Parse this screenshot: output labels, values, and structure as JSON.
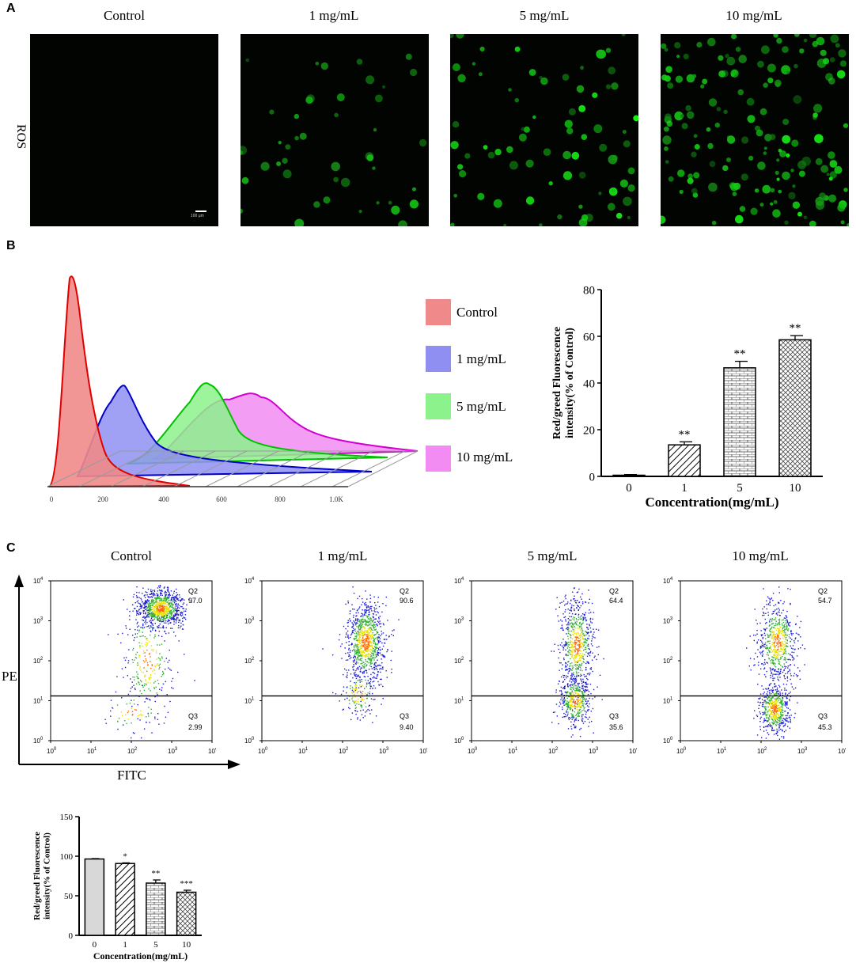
{
  "panels": {
    "a": "A",
    "b": "B",
    "c": "C"
  },
  "panel_a": {
    "row_label": "ROS",
    "columns": [
      "Control",
      "1 mg/mL",
      "5 mg/mL",
      "10 mg/mL"
    ],
    "scale_bar": "100 μm"
  },
  "panel_b": {
    "histogram": {
      "x_ticks": [
        "0",
        "200",
        "400",
        "600",
        "800",
        "1.0K"
      ],
      "legend": [
        {
          "label": "Control",
          "color": "#f08a8a"
        },
        {
          "label": "1 mg/mL",
          "color": "#8f8ff2"
        },
        {
          "label": "5 mg/mL",
          "color": "#8cf28c"
        },
        {
          "label": "10 mg/mL",
          "color": "#f28cf2"
        }
      ]
    }
  },
  "panel_c": {
    "columns": [
      "Control",
      "1 mg/mL",
      "5 mg/mL",
      "10 mg/mL"
    ],
    "y_axis_label": "PE",
    "x_axis_label": "FITC",
    "quadrants": [
      {
        "q2": "Q2",
        "q2_value": "97.0",
        "q3": "Q3",
        "q3_value": "2.99"
      },
      {
        "q2": "Q2",
        "q2_value": "90.6",
        "q3": "Q3",
        "q3_value": "9.40"
      },
      {
        "q2": "Q2",
        "q2_value": "64.4",
        "q3": "Q3",
        "q3_value": "35.6"
      },
      {
        "q2": "Q2",
        "q2_value": "54.7",
        "q3": "Q3",
        "q3_value": "45.3"
      }
    ],
    "log_ticks": [
      "10",
      "10",
      "10",
      "10",
      "10"
    ],
    "log_exps": [
      "0",
      "1",
      "2",
      "3",
      "4"
    ]
  },
  "chart_data": [
    {
      "type": "bar",
      "panel": "B",
      "categories": [
        "0",
        "1",
        "5",
        "10"
      ],
      "values": [
        0.5,
        13.5,
        46.5,
        58.5
      ],
      "errors": [
        0.3,
        1.3,
        2.8,
        1.8
      ],
      "significance": [
        "",
        "**",
        "**",
        "**"
      ],
      "ylim": [
        0,
        80
      ],
      "yticks": [
        "0",
        "20",
        "40",
        "60",
        "80"
      ],
      "ylabel": "Red/greed Fluorescence intensity(% of Control)",
      "xlabel": "Concentration(mg/mL)"
    },
    {
      "type": "bar",
      "panel": "C",
      "categories": [
        "0",
        "1",
        "5",
        "10"
      ],
      "values": [
        96.5,
        90.8,
        66,
        54.5
      ],
      "errors": [
        0.5,
        0.8,
        4,
        2.5
      ],
      "significance": [
        "",
        "*",
        "**",
        "***"
      ],
      "ylim": [
        0,
        150
      ],
      "yticks": [
        "0",
        "50",
        "100",
        "150"
      ],
      "ylabel": "Red/greed Fluorescence intensity(% of Control)",
      "xlabel": "Concentration(mg/mL)"
    }
  ]
}
